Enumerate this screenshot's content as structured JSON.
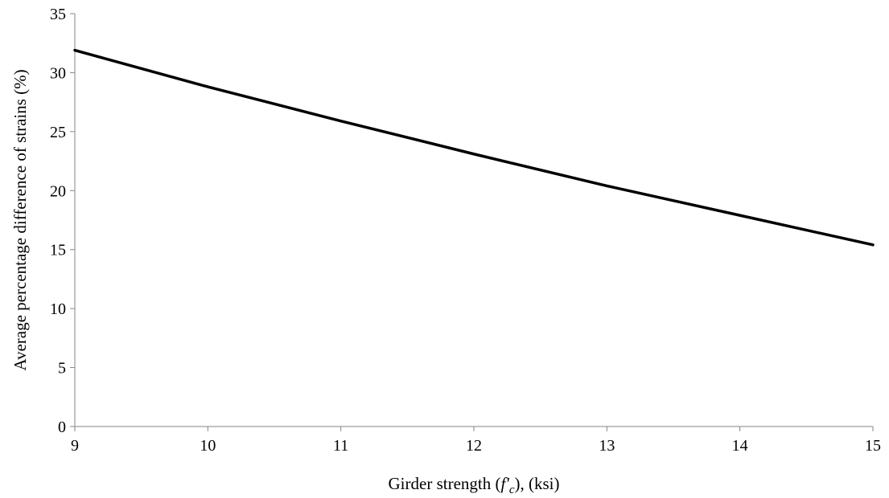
{
  "chart_data": {
    "type": "line",
    "title": "",
    "xlabel_parts": {
      "prefix": "Girder strength (",
      "var_main": "f'",
      "var_sub": "c",
      "suffix": "), (ksi)"
    },
    "ylabel": "Average percentage difference of strains (%)",
    "xlim": [
      9,
      15
    ],
    "ylim": [
      0,
      35
    ],
    "xticks": [
      9,
      10,
      11,
      12,
      13,
      14,
      15
    ],
    "yticks": [
      0,
      5,
      10,
      15,
      20,
      25,
      30,
      35
    ],
    "grid": false,
    "legend": "none",
    "series": [
      {
        "color": "#000000",
        "x": [
          9,
          10,
          11,
          12,
          13,
          14,
          15
        ],
        "y": [
          31.9,
          28.8,
          25.9,
          23.1,
          20.4,
          17.9,
          15.4
        ]
      }
    ]
  }
}
